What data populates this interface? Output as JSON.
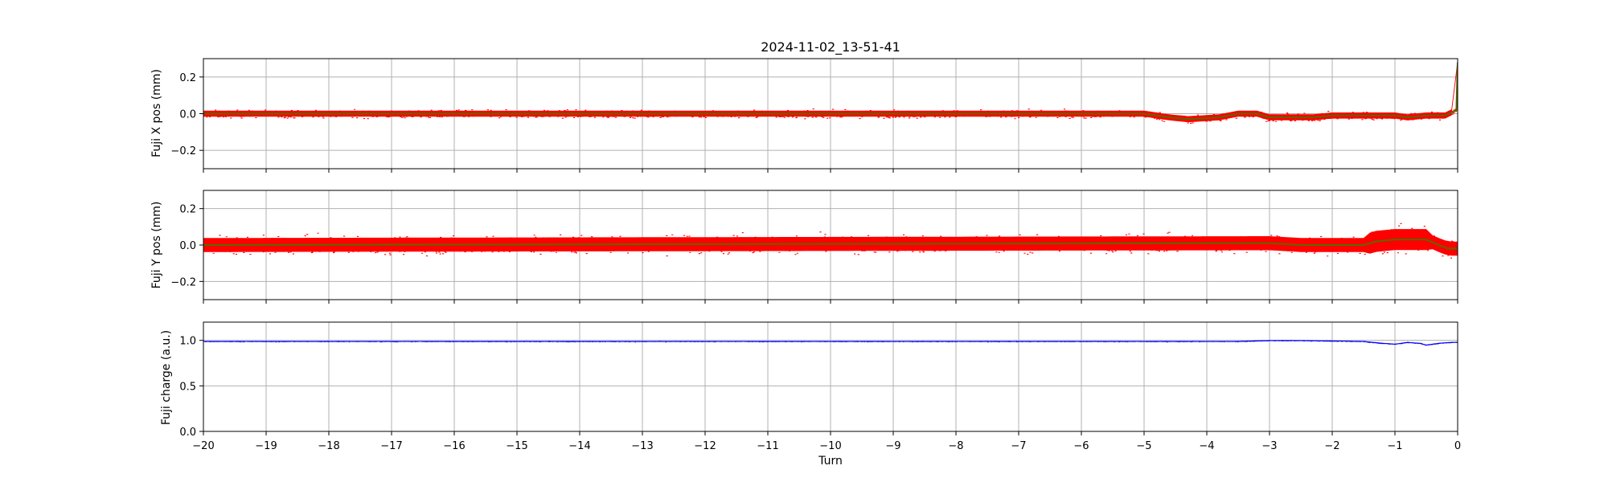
{
  "chart_data": [
    {
      "type": "scatter",
      "title": "2024-11-02_13-51-41",
      "ylabel": "Fuji X pos (mm)",
      "xlabel": "",
      "xlim": [
        -20,
        0
      ],
      "ylim": [
        -0.3,
        0.3
      ],
      "yticks": [
        -0.2,
        0.0,
        0.2
      ],
      "ytick_labels": [
        "−0.2",
        "0.0",
        "0.2"
      ],
      "grid": true,
      "series": [
        {
          "color": "#ff0000",
          "marker": "dot",
          "noise_halfwidth": 0.03
        },
        {
          "color": "#556b00",
          "marker": "line"
        }
      ],
      "mean_trend": {
        "x": [
          -20,
          -5.0,
          -4.6,
          -4.3,
          -3.8,
          -3.5,
          -3.2,
          -3.0,
          -2.7,
          -2.3,
          -2.0,
          -1.8,
          -1.5,
          -1.2,
          -1.0,
          -0.8,
          -0.5,
          -0.2,
          -0.02,
          0
        ],
        "y": [
          0.0,
          0.0,
          -0.02,
          -0.03,
          -0.02,
          0.0,
          0.0,
          -0.02,
          -0.02,
          -0.02,
          -0.01,
          -0.01,
          -0.01,
          -0.01,
          -0.01,
          -0.02,
          -0.01,
          -0.01,
          0.02,
          0.28
        ]
      }
    },
    {
      "type": "scatter",
      "title": "",
      "ylabel": "Fuji Y pos (mm)",
      "xlabel": "",
      "xlim": [
        -20,
        0
      ],
      "ylim": [
        -0.3,
        0.3
      ],
      "yticks": [
        -0.2,
        0.0,
        0.2
      ],
      "ytick_labels": [
        "−0.2",
        "0.0",
        "0.2"
      ],
      "grid": true,
      "series": [
        {
          "color": "#ff0000",
          "marker": "dot",
          "noise_halfwidth": 0.07
        },
        {
          "color": "#556b00",
          "marker": "line"
        }
      ],
      "mean_trend": {
        "x": [
          -20,
          -3.0,
          -2.5,
          -2.0,
          -1.5,
          -1.3,
          -1.0,
          -0.7,
          -0.5,
          -0.3,
          -0.15,
          0
        ],
        "y": [
          0.0,
          0.01,
          0.0,
          0.0,
          0.0,
          0.02,
          0.03,
          0.03,
          0.03,
          0.0,
          -0.02,
          -0.02
        ]
      }
    },
    {
      "type": "scatter",
      "title": "",
      "ylabel": "Fuji charge (a.u.)",
      "xlabel": "Turn",
      "xlim": [
        -20,
        0
      ],
      "ylim": [
        0.0,
        1.2
      ],
      "yticks": [
        0.0,
        0.5,
        1.0
      ],
      "ytick_labels": [
        "0.0",
        "0.5",
        "1.0"
      ],
      "xticks": [
        -20,
        -19,
        -18,
        -17,
        -16,
        -15,
        -14,
        -13,
        -12,
        -11,
        -10,
        -9,
        -8,
        -7,
        -6,
        -5,
        -4,
        -3,
        -2,
        -1,
        0
      ],
      "xtick_labels": [
        "−20",
        "−19",
        "−18",
        "−17",
        "−16",
        "−15",
        "−14",
        "−13",
        "−12",
        "−11",
        "−10",
        "−9",
        "−8",
        "−7",
        "−6",
        "−5",
        "−4",
        "−3",
        "−2",
        "−1",
        "0"
      ],
      "grid": true,
      "series": [
        {
          "color": "#0000ff",
          "marker": "dot",
          "noise_halfwidth": 0.005
        }
      ],
      "mean_trend": {
        "x": [
          -20,
          -3.5,
          -3.0,
          -2.5,
          -1.5,
          -1.2,
          -1.0,
          -0.8,
          -0.6,
          -0.5,
          -0.3,
          -0.1,
          0
        ],
        "y": [
          0.99,
          0.99,
          1.0,
          1.0,
          0.99,
          0.97,
          0.96,
          0.98,
          0.97,
          0.95,
          0.97,
          0.98,
          0.98
        ]
      }
    }
  ]
}
